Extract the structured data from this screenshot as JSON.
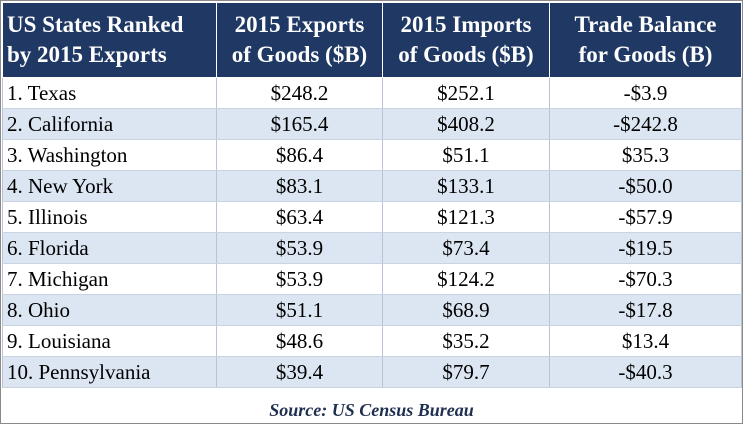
{
  "chart_data": {
    "type": "table",
    "columns": [
      [
        "US States Ranked",
        "by 2015 Exports"
      ],
      [
        "2015 Exports",
        "of Goods ($B)"
      ],
      [
        "2015 Imports",
        "of Goods ($B)"
      ],
      [
        "Trade Balance",
        "for Goods (B)"
      ]
    ],
    "rows": [
      [
        "1. Texas",
        "$248.2",
        "$252.1",
        "-$3.9"
      ],
      [
        "2. California",
        "$165.4",
        "$408.2",
        "-$242.8"
      ],
      [
        "3. Washington",
        "$86.4",
        "$51.1",
        "$35.3"
      ],
      [
        "4. New York",
        "$83.1",
        "$133.1",
        "-$50.0"
      ],
      [
        "5. Illinois",
        "$63.4",
        "$121.3",
        "-$57.9"
      ],
      [
        "6. Florida",
        "$53.9",
        "$73.4",
        "-$19.5"
      ],
      [
        "7. Michigan",
        "$53.9",
        "$124.2",
        "-$70.3"
      ],
      [
        "8. Ohio",
        "$51.1",
        "$68.9",
        "-$17.8"
      ],
      [
        "9. Louisiana",
        "$48.6",
        "$35.2",
        "$13.4"
      ],
      [
        "10. Pennsylvania",
        "$39.4",
        "$79.7",
        "-$40.3"
      ]
    ],
    "source": "Source: US Census Bureau"
  },
  "colors": {
    "header_bg": "#1f3864",
    "header_text": "#ffffff",
    "stripe_row": "#dce6f2",
    "plain_row": "#ffffff"
  }
}
